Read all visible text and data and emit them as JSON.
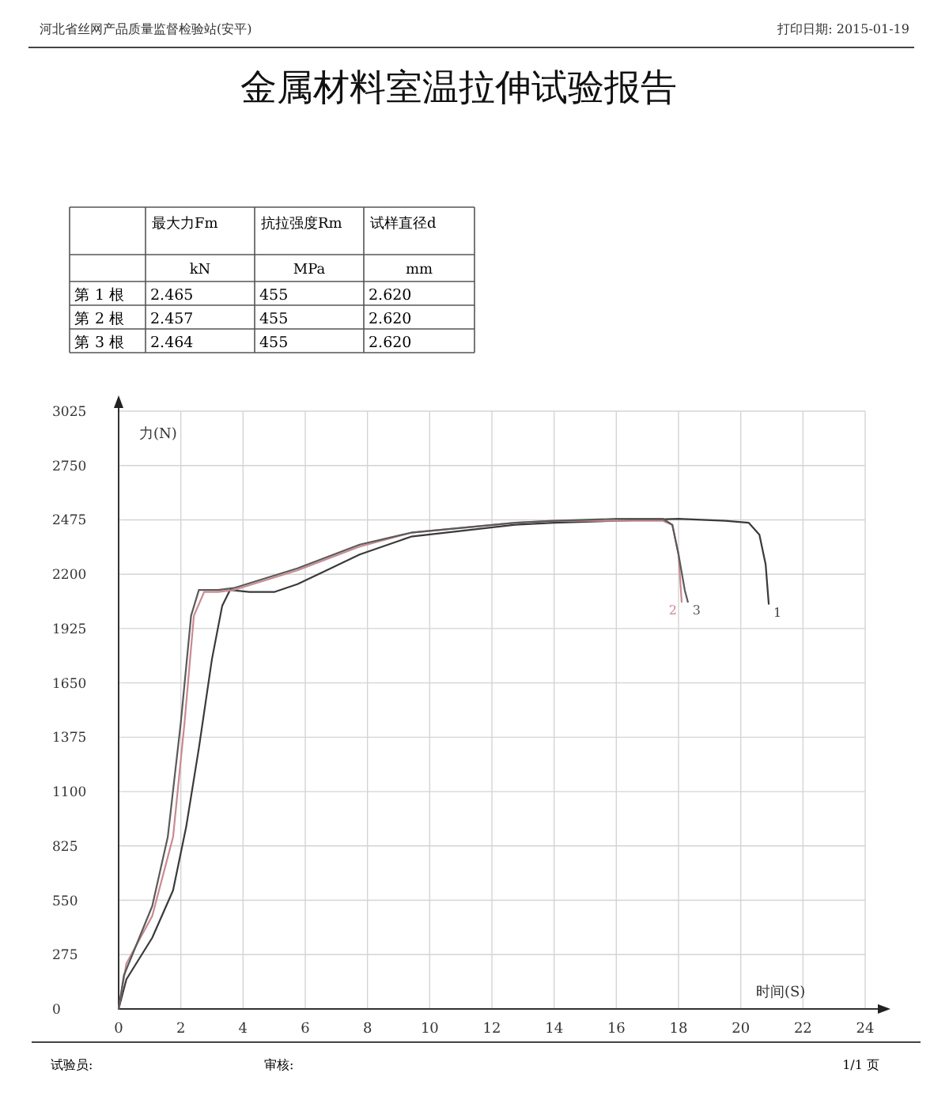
{
  "chart_data": {
    "type": "line",
    "title": "金属材料室温拉伸试验报告",
    "xlabel": "时间(S)",
    "ylabel": "力(N)",
    "annotations": [
      "河北省丝网产品质量监督检验站(安平)",
      "打印日期: 2015-01-19",
      "最大力Fm",
      "抗拉强度Rm",
      "试样直径d",
      "kN",
      "MPa",
      "mm",
      "第 1 根",
      "2.465",
      "455",
      "2.620",
      "第 2 根",
      "2.457",
      "455",
      "2.620",
      "第 3 根",
      "2.464",
      "455",
      "2.620",
      "试验员:",
      "审核:",
      "1/1 页"
    ],
    "xlim": [
      0,
      24
    ],
    "ylim": [
      0,
      3025
    ],
    "xticks": [
      0,
      2,
      4,
      6,
      8,
      10,
      12,
      14,
      16,
      18,
      20,
      22,
      24
    ],
    "yticks": [
      0,
      275,
      550,
      825,
      1100,
      1375,
      1650,
      1925,
      2200,
      2475,
      2750,
      3025
    ],
    "grid": true,
    "marker": "none",
    "line_style": "solid",
    "series": [
      {
        "name": "1",
        "color": "#3a3a3a",
        "x": [
          0,
          0.25,
          1.08,
          1.75,
          2.17,
          2.58,
          3.0,
          3.33,
          3.58,
          4.2,
          5.0,
          5.75,
          6.42,
          7.75,
          9.4,
          12.75,
          14,
          16,
          18,
          19.5,
          20.26,
          20.6,
          20.8,
          20.9
        ],
        "values": [
          0,
          150,
          360,
          600,
          920,
          1320,
          1770,
          2040,
          2120,
          2110,
          2110,
          2150,
          2200,
          2300,
          2390,
          2450,
          2460,
          2470,
          2480,
          2470,
          2460,
          2400,
          2250,
          2050
        ]
      },
      {
        "name": "2",
        "color": "#c98a90",
        "x": [
          0,
          0.25,
          1.08,
          1.75,
          2.12,
          2.42,
          2.75,
          3.2,
          3.7,
          5.75,
          7.75,
          9.4,
          12.75,
          14,
          16,
          17.5,
          17.8,
          18.0,
          18.1
        ],
        "values": [
          0,
          230,
          470,
          870,
          1450,
          1990,
          2110,
          2110,
          2120,
          2220,
          2340,
          2410,
          2460,
          2470,
          2470,
          2470,
          2450,
          2300,
          2060
        ]
      },
      {
        "name": "3",
        "color": "#5a5a5a",
        "x": [
          0,
          0.17,
          1.08,
          1.58,
          2.0,
          2.33,
          2.58,
          3.2,
          3.7,
          5.75,
          7.75,
          9.4,
          12.75,
          14,
          16,
          17.5,
          17.8,
          18.0,
          18.2,
          18.3
        ],
        "values": [
          0,
          170,
          520,
          870,
          1450,
          1990,
          2120,
          2120,
          2130,
          2230,
          2350,
          2410,
          2460,
          2470,
          2480,
          2480,
          2450,
          2300,
          2120,
          2060
        ]
      }
    ]
  }
}
